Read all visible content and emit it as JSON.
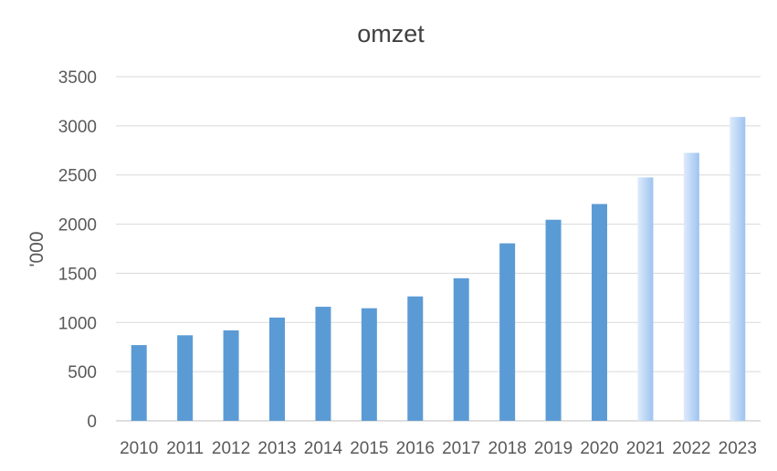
{
  "chart_data": {
    "type": "bar",
    "title": "omzet",
    "xlabel": "",
    "ylabel": "'000",
    "ylim": [
      0,
      3500
    ],
    "yticks": [
      0,
      500,
      1000,
      1500,
      2000,
      2500,
      3000,
      3500
    ],
    "grid": true,
    "legend": "none",
    "categories": [
      "2010",
      "2011",
      "2012",
      "2013",
      "2014",
      "2015",
      "2016",
      "2017",
      "2018",
      "2019",
      "2020",
      "2021",
      "2022",
      "2023"
    ],
    "values": [
      770,
      870,
      920,
      1050,
      1160,
      1145,
      1265,
      1450,
      1805,
      2045,
      2205,
      2475,
      2725,
      3090
    ],
    "forecast_from_index": 11,
    "colors": {
      "bar": "#5b9bd5",
      "forecast_light": "#deebfb",
      "forecast_dark": "#9dc3f0",
      "grid": "#d9d9d9",
      "axis": "#bfbfbf",
      "text": "#595959",
      "title": "#404040"
    }
  }
}
